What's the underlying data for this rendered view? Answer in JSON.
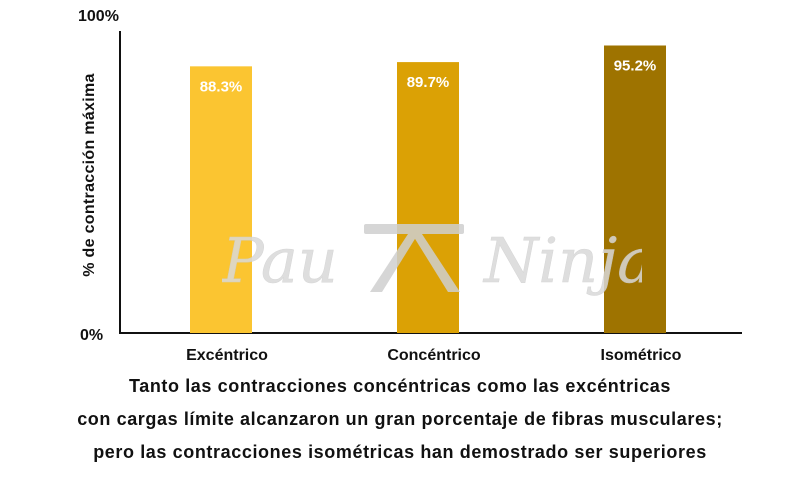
{
  "chart_data": {
    "type": "bar",
    "categories": [
      "Excéntrico",
      "Concéntrico",
      "Isométrico"
    ],
    "values": [
      88.3,
      89.7,
      95.2
    ],
    "value_labels": [
      "88.3%",
      "89.7%",
      "95.2%"
    ],
    "colors": [
      "#FBC531",
      "#DBA105",
      "#9E7300"
    ],
    "ylabel": "% de contracción máxima",
    "ylim": [
      0,
      100
    ],
    "ytick_labels": [
      "0%",
      "100%"
    ],
    "grid": false
  },
  "caption": {
    "line1": "Tanto las contracciones concéntricas como las excéntricas",
    "line2": "con cargas límite alcanzaron un gran porcentaje de fibras musculares;",
    "line3": "pero las contracciones isométricas han demostrado ser superiores"
  },
  "watermark": {
    "text_left": "Pau",
    "text_right": "Ninja",
    "icon": "pi-logo-icon"
  }
}
